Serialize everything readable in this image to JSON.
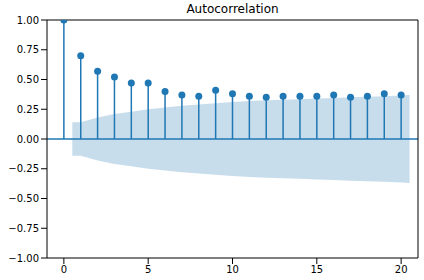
{
  "chart_data": {
    "type": "stem",
    "title": "Autocorrelation",
    "color": "#1f77b4",
    "x": [
      0,
      1,
      2,
      3,
      4,
      5,
      6,
      7,
      8,
      9,
      10,
      11,
      12,
      13,
      14,
      15,
      16,
      17,
      18,
      19,
      20
    ],
    "values": [
      1.0,
      0.7,
      0.57,
      0.52,
      0.47,
      0.47,
      0.4,
      0.37,
      0.36,
      0.41,
      0.38,
      0.36,
      0.35,
      0.36,
      0.36,
      0.36,
      0.37,
      0.35,
      0.36,
      0.38,
      0.37
    ],
    "confidence_band": {
      "x": [
        0.5,
        1,
        2,
        3,
        4,
        5,
        6,
        7,
        8,
        9,
        10,
        11,
        12,
        13,
        14,
        15,
        16,
        17,
        18,
        19,
        20,
        20.5
      ],
      "lower": [
        -0.14,
        -0.14,
        -0.18,
        -0.21,
        -0.23,
        -0.25,
        -0.265,
        -0.28,
        -0.29,
        -0.3,
        -0.31,
        -0.32,
        -0.325,
        -0.33,
        -0.335,
        -0.34,
        -0.345,
        -0.35,
        -0.355,
        -0.36,
        -0.365,
        -0.37
      ],
      "upper": [
        0.14,
        0.14,
        0.18,
        0.21,
        0.23,
        0.25,
        0.265,
        0.28,
        0.29,
        0.3,
        0.31,
        0.32,
        0.325,
        0.33,
        0.335,
        0.34,
        0.345,
        0.35,
        0.355,
        0.36,
        0.365,
        0.37
      ]
    },
    "xlim": [
      -1,
      21
    ],
    "xticks": [
      0,
      5,
      10,
      15,
      20
    ],
    "ylim": [
      -1,
      1
    ],
    "yticks": [
      {
        "value": -1,
        "label": "−1.00"
      },
      {
        "value": -0.75,
        "label": "−0.75"
      },
      {
        "value": -0.5,
        "label": "−0.50"
      },
      {
        "value": -0.25,
        "label": "−0.25"
      },
      {
        "value": 0,
        "label": "0.00"
      },
      {
        "value": 0.25,
        "label": "0.25"
      },
      {
        "value": 0.5,
        "label": "0.50"
      },
      {
        "value": 0.75,
        "label": "0.75"
      },
      {
        "value": 1,
        "label": "1.00"
      }
    ],
    "grid": false
  }
}
